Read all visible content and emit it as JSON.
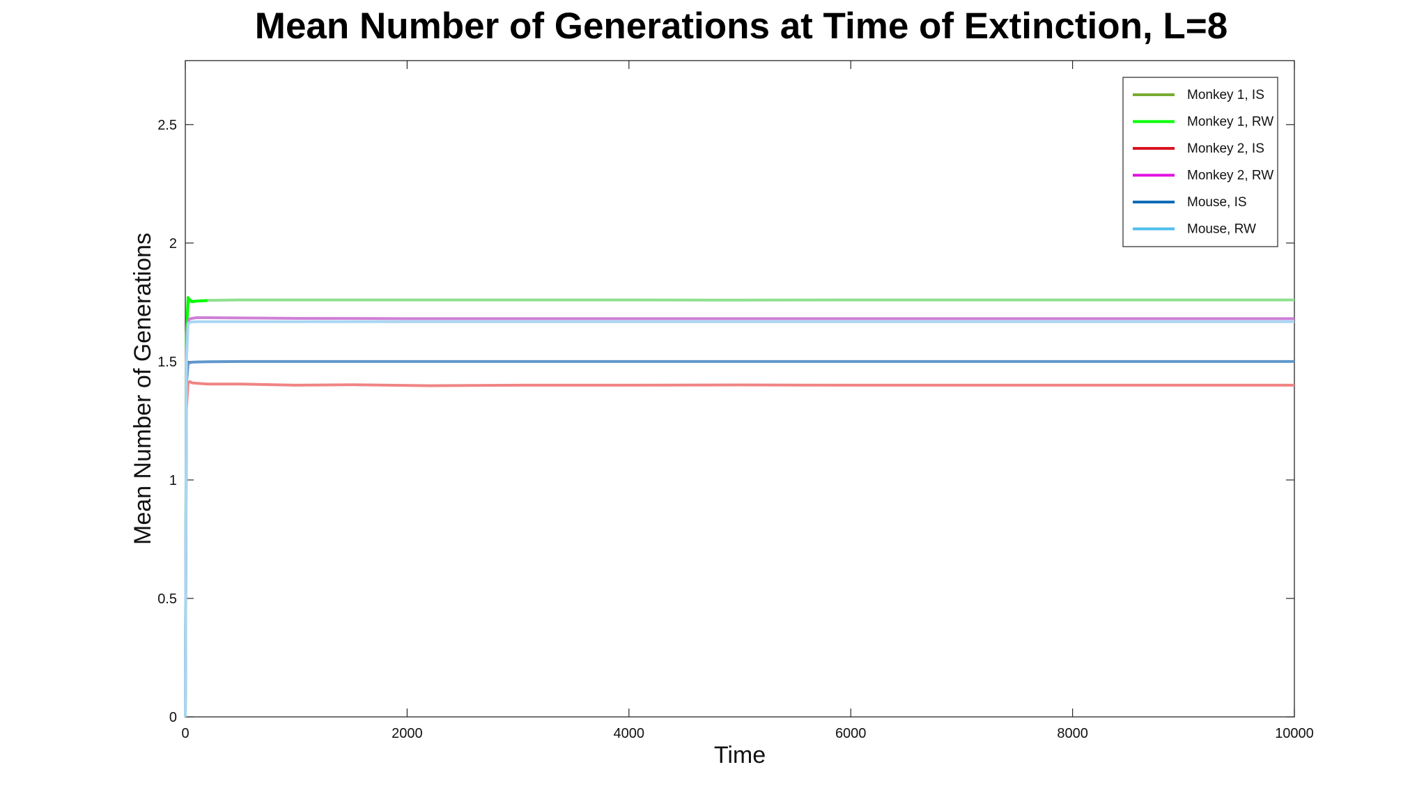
{
  "chart_data": {
    "type": "line",
    "title": "Mean Number of Generations at Time of Extinction, L=8",
    "xlabel": "Time",
    "ylabel": "Mean Number of Generations",
    "xlim": [
      0,
      10000
    ],
    "ylim": [
      0,
      2.77
    ],
    "xticks": [
      0,
      2000,
      4000,
      6000,
      8000,
      10000
    ],
    "yticks": [
      0,
      0.5,
      1,
      1.5,
      2,
      2.5
    ],
    "grid": false,
    "legend_position": "top-right",
    "series": [
      {
        "name": "Monkey 1, IS",
        "legend_color": "#77AC30",
        "color": "#8fe08f",
        "x": [
          0,
          10,
          25,
          40,
          60,
          100,
          200,
          500,
          1000,
          2000,
          3000,
          4000,
          5000,
          6000,
          7000,
          8000,
          9000,
          10000
        ],
        "y": [
          0,
          1.6,
          1.74,
          1.76,
          1.755,
          1.755,
          1.758,
          1.76,
          1.76,
          1.76,
          1.76,
          1.76,
          1.759,
          1.76,
          1.76,
          1.76,
          1.76,
          1.76
        ]
      },
      {
        "name": "Monkey 1, RW",
        "legend_color": "#00FF00",
        "color": "#00ff00",
        "x": [
          0,
          10,
          25,
          40,
          60,
          100,
          200
        ],
        "y": [
          0,
          1.62,
          1.77,
          1.76,
          1.752,
          1.755,
          1.757
        ]
      },
      {
        "name": "Monkey 2, IS",
        "legend_color": "#D9131F",
        "color": "#f08484",
        "x": [
          0,
          10,
          25,
          40,
          60,
          100,
          200,
          500,
          1000,
          1500,
          2200,
          3000,
          4000,
          5000,
          6000,
          7000,
          8000,
          9000,
          10000
        ],
        "y": [
          0,
          1.3,
          1.41,
          1.415,
          1.41,
          1.408,
          1.405,
          1.405,
          1.4,
          1.402,
          1.398,
          1.4,
          1.4,
          1.401,
          1.4,
          1.4,
          1.4,
          1.4,
          1.4
        ]
      },
      {
        "name": "Monkey 2, RW",
        "legend_color": "#E011E0",
        "color": "#cf7fd6",
        "x": [
          0,
          10,
          25,
          40,
          60,
          100,
          200,
          500,
          1000,
          2000,
          3000,
          4000,
          5000,
          6000,
          7000,
          8000,
          9000,
          10000
        ],
        "y": [
          0,
          1.55,
          1.67,
          1.68,
          1.682,
          1.685,
          1.685,
          1.684,
          1.682,
          1.681,
          1.681,
          1.681,
          1.681,
          1.681,
          1.681,
          1.681,
          1.681,
          1.681
        ]
      },
      {
        "name": "Mouse, IS",
        "legend_color": "#0E6CB6",
        "color": "#5f97cc",
        "x": [
          0,
          10,
          25,
          40,
          60,
          100,
          200,
          500,
          1000,
          2000,
          4000,
          6000,
          8000,
          10000
        ],
        "y": [
          0,
          1.4,
          1.49,
          1.495,
          1.497,
          1.498,
          1.499,
          1.5,
          1.5,
          1.5,
          1.5,
          1.5,
          1.5,
          1.5
        ]
      },
      {
        "name": "Mouse, RW",
        "legend_color": "#4DBEEE",
        "color": "#a9d6f2",
        "x": [
          0,
          10,
          25,
          40,
          60,
          100,
          200,
          500,
          1000,
          2000,
          4000,
          6000,
          8000,
          10000
        ],
        "y": [
          0,
          1.5,
          1.66,
          1.665,
          1.667,
          1.668,
          1.668,
          1.668,
          1.668,
          1.668,
          1.668,
          1.668,
          1.668,
          1.668
        ]
      }
    ]
  }
}
